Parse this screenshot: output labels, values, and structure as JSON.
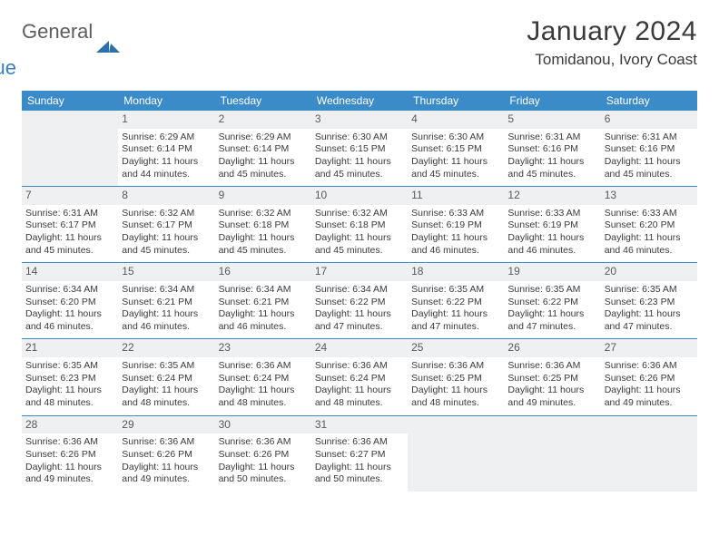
{
  "logo": {
    "word1": "General",
    "word2": "Blue"
  },
  "title": {
    "month": "January 2024",
    "location": "Tomidanou, Ivory Coast"
  },
  "colors": {
    "header_bg": "#3b8bc9",
    "header_text": "#ffffff",
    "daynum_bg": "#eef0f1",
    "border": "#3b8bc9",
    "body_text": "#3a3a3a",
    "logo_gray": "#5d5d5d",
    "logo_blue": "#3b7fbf"
  },
  "typography": {
    "month_fontsize": 30,
    "location_fontsize": 17,
    "dow_fontsize": 12,
    "daynum_fontsize": 12,
    "cell_fontsize": 10.5
  },
  "dow": [
    "Sunday",
    "Monday",
    "Tuesday",
    "Wednesday",
    "Thursday",
    "Friday",
    "Saturday"
  ],
  "weeks": [
    [
      null,
      {
        "n": "1",
        "sr": "Sunrise: 6:29 AM",
        "ss": "Sunset: 6:14 PM",
        "d1": "Daylight: 11 hours",
        "d2": "and 44 minutes."
      },
      {
        "n": "2",
        "sr": "Sunrise: 6:29 AM",
        "ss": "Sunset: 6:14 PM",
        "d1": "Daylight: 11 hours",
        "d2": "and 45 minutes."
      },
      {
        "n": "3",
        "sr": "Sunrise: 6:30 AM",
        "ss": "Sunset: 6:15 PM",
        "d1": "Daylight: 11 hours",
        "d2": "and 45 minutes."
      },
      {
        "n": "4",
        "sr": "Sunrise: 6:30 AM",
        "ss": "Sunset: 6:15 PM",
        "d1": "Daylight: 11 hours",
        "d2": "and 45 minutes."
      },
      {
        "n": "5",
        "sr": "Sunrise: 6:31 AM",
        "ss": "Sunset: 6:16 PM",
        "d1": "Daylight: 11 hours",
        "d2": "and 45 minutes."
      },
      {
        "n": "6",
        "sr": "Sunrise: 6:31 AM",
        "ss": "Sunset: 6:16 PM",
        "d1": "Daylight: 11 hours",
        "d2": "and 45 minutes."
      }
    ],
    [
      {
        "n": "7",
        "sr": "Sunrise: 6:31 AM",
        "ss": "Sunset: 6:17 PM",
        "d1": "Daylight: 11 hours",
        "d2": "and 45 minutes."
      },
      {
        "n": "8",
        "sr": "Sunrise: 6:32 AM",
        "ss": "Sunset: 6:17 PM",
        "d1": "Daylight: 11 hours",
        "d2": "and 45 minutes."
      },
      {
        "n": "9",
        "sr": "Sunrise: 6:32 AM",
        "ss": "Sunset: 6:18 PM",
        "d1": "Daylight: 11 hours",
        "d2": "and 45 minutes."
      },
      {
        "n": "10",
        "sr": "Sunrise: 6:32 AM",
        "ss": "Sunset: 6:18 PM",
        "d1": "Daylight: 11 hours",
        "d2": "and 45 minutes."
      },
      {
        "n": "11",
        "sr": "Sunrise: 6:33 AM",
        "ss": "Sunset: 6:19 PM",
        "d1": "Daylight: 11 hours",
        "d2": "and 46 minutes."
      },
      {
        "n": "12",
        "sr": "Sunrise: 6:33 AM",
        "ss": "Sunset: 6:19 PM",
        "d1": "Daylight: 11 hours",
        "d2": "and 46 minutes."
      },
      {
        "n": "13",
        "sr": "Sunrise: 6:33 AM",
        "ss": "Sunset: 6:20 PM",
        "d1": "Daylight: 11 hours",
        "d2": "and 46 minutes."
      }
    ],
    [
      {
        "n": "14",
        "sr": "Sunrise: 6:34 AM",
        "ss": "Sunset: 6:20 PM",
        "d1": "Daylight: 11 hours",
        "d2": "and 46 minutes."
      },
      {
        "n": "15",
        "sr": "Sunrise: 6:34 AM",
        "ss": "Sunset: 6:21 PM",
        "d1": "Daylight: 11 hours",
        "d2": "and 46 minutes."
      },
      {
        "n": "16",
        "sr": "Sunrise: 6:34 AM",
        "ss": "Sunset: 6:21 PM",
        "d1": "Daylight: 11 hours",
        "d2": "and 46 minutes."
      },
      {
        "n": "17",
        "sr": "Sunrise: 6:34 AM",
        "ss": "Sunset: 6:22 PM",
        "d1": "Daylight: 11 hours",
        "d2": "and 47 minutes."
      },
      {
        "n": "18",
        "sr": "Sunrise: 6:35 AM",
        "ss": "Sunset: 6:22 PM",
        "d1": "Daylight: 11 hours",
        "d2": "and 47 minutes."
      },
      {
        "n": "19",
        "sr": "Sunrise: 6:35 AM",
        "ss": "Sunset: 6:22 PM",
        "d1": "Daylight: 11 hours",
        "d2": "and 47 minutes."
      },
      {
        "n": "20",
        "sr": "Sunrise: 6:35 AM",
        "ss": "Sunset: 6:23 PM",
        "d1": "Daylight: 11 hours",
        "d2": "and 47 minutes."
      }
    ],
    [
      {
        "n": "21",
        "sr": "Sunrise: 6:35 AM",
        "ss": "Sunset: 6:23 PM",
        "d1": "Daylight: 11 hours",
        "d2": "and 48 minutes."
      },
      {
        "n": "22",
        "sr": "Sunrise: 6:35 AM",
        "ss": "Sunset: 6:24 PM",
        "d1": "Daylight: 11 hours",
        "d2": "and 48 minutes."
      },
      {
        "n": "23",
        "sr": "Sunrise: 6:36 AM",
        "ss": "Sunset: 6:24 PM",
        "d1": "Daylight: 11 hours",
        "d2": "and 48 minutes."
      },
      {
        "n": "24",
        "sr": "Sunrise: 6:36 AM",
        "ss": "Sunset: 6:24 PM",
        "d1": "Daylight: 11 hours",
        "d2": "and 48 minutes."
      },
      {
        "n": "25",
        "sr": "Sunrise: 6:36 AM",
        "ss": "Sunset: 6:25 PM",
        "d1": "Daylight: 11 hours",
        "d2": "and 48 minutes."
      },
      {
        "n": "26",
        "sr": "Sunrise: 6:36 AM",
        "ss": "Sunset: 6:25 PM",
        "d1": "Daylight: 11 hours",
        "d2": "and 49 minutes."
      },
      {
        "n": "27",
        "sr": "Sunrise: 6:36 AM",
        "ss": "Sunset: 6:26 PM",
        "d1": "Daylight: 11 hours",
        "d2": "and 49 minutes."
      }
    ],
    [
      {
        "n": "28",
        "sr": "Sunrise: 6:36 AM",
        "ss": "Sunset: 6:26 PM",
        "d1": "Daylight: 11 hours",
        "d2": "and 49 minutes."
      },
      {
        "n": "29",
        "sr": "Sunrise: 6:36 AM",
        "ss": "Sunset: 6:26 PM",
        "d1": "Daylight: 11 hours",
        "d2": "and 49 minutes."
      },
      {
        "n": "30",
        "sr": "Sunrise: 6:36 AM",
        "ss": "Sunset: 6:26 PM",
        "d1": "Daylight: 11 hours",
        "d2": "and 50 minutes."
      },
      {
        "n": "31",
        "sr": "Sunrise: 6:36 AM",
        "ss": "Sunset: 6:27 PM",
        "d1": "Daylight: 11 hours",
        "d2": "and 50 minutes."
      },
      null,
      null,
      null
    ]
  ]
}
